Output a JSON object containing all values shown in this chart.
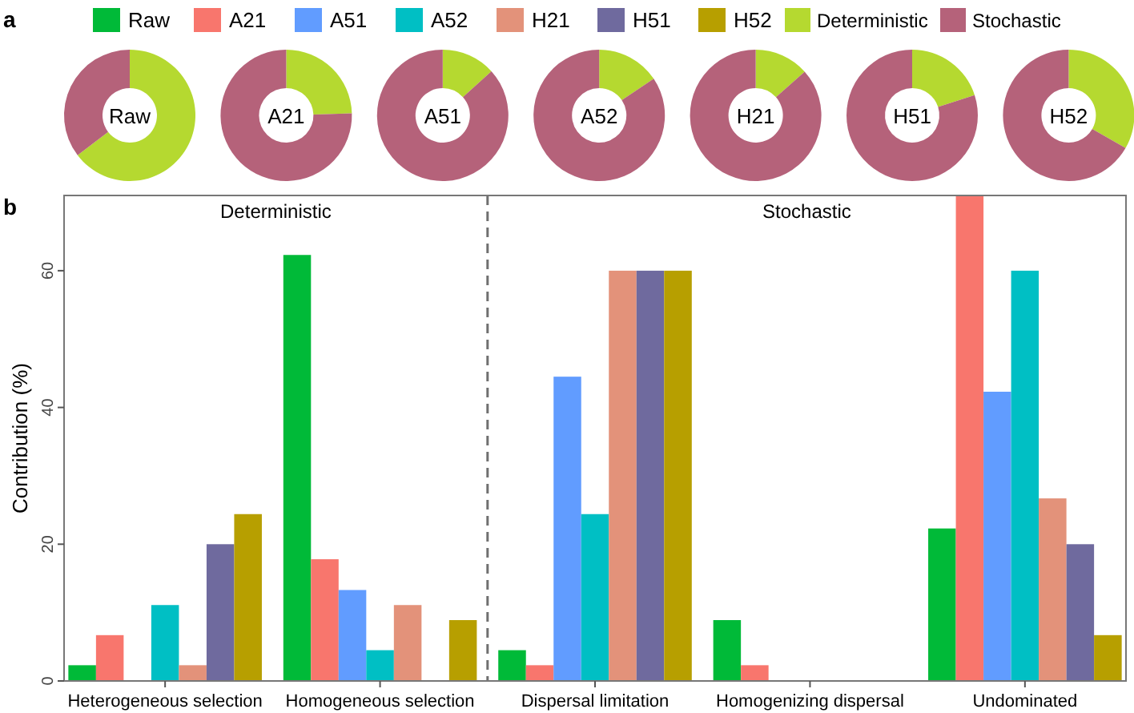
{
  "chart_data": [
    {
      "type": "donut",
      "title": "Raw",
      "categories": [
        "Deterministic",
        "Stochastic"
      ],
      "values": [
        64.6,
        35.4
      ],
      "colors": [
        "#b5d930",
        "#b5627a"
      ],
      "legend": "top right",
      "annotations": [
        "a"
      ]
    },
    {
      "type": "donut",
      "title": "A21",
      "values": [
        24.5,
        75.5
      ],
      "colors": [
        "#b5d930",
        "#b5627a"
      ]
    },
    {
      "type": "donut",
      "title": "A51",
      "values": [
        13.3,
        86.7
      ],
      "colors": [
        "#b5d930",
        "#b5627a"
      ]
    },
    {
      "type": "donut",
      "title": "A52",
      "values": [
        15.6,
        84.4
      ],
      "colors": [
        "#b5d930",
        "#b5627a"
      ]
    },
    {
      "type": "donut",
      "title": "H21",
      "values": [
        13.4,
        86.6
      ],
      "colors": [
        "#b5d930",
        "#b5627a"
      ]
    },
    {
      "type": "donut",
      "title": "H51",
      "values": [
        20,
        80
      ],
      "colors": [
        "#b5d930",
        "#b5627a"
      ]
    },
    {
      "type": "donut",
      "title": "H52",
      "values": [
        33.3,
        66.7
      ],
      "colors": [
        "#b5d930",
        "#b5627a"
      ]
    },
    {
      "type": "bar",
      "ylabel": "Contribution (%)",
      "categories": [
        "Heterogeneous selection",
        "Homogeneous selection",
        "Dispersal limitation",
        "Homogenizing dispersal",
        "Undominated"
      ],
      "series": [
        {
          "name": "Raw",
          "color": "#00ba38",
          "values": [
            2.3,
            62.3,
            4.5,
            8.9,
            22.3
          ]
        },
        {
          "name": "A21",
          "color": "#f8766d",
          "values": [
            6.7,
            17.8,
            2.3,
            2.3,
            71
          ]
        },
        {
          "name": "A51",
          "color": "#619cff",
          "values": [
            0,
            13.3,
            44.5,
            0,
            42.3
          ]
        },
        {
          "name": "A52",
          "color": "#00bfc4",
          "values": [
            11.1,
            4.5,
            24.4,
            0,
            60
          ]
        },
        {
          "name": "H21",
          "color": "#e3927a",
          "values": [
            2.3,
            11.1,
            60,
            0,
            26.7
          ]
        },
        {
          "name": "H51",
          "color": "#6f6a9e",
          "values": [
            20,
            0,
            60,
            0,
            20
          ]
        },
        {
          "name": "H52",
          "color": "#b79f00",
          "values": [
            24.4,
            8.9,
            60,
            0,
            6.7
          ]
        }
      ],
      "ylim": [
        0,
        71
      ],
      "yticks": [
        0,
        20,
        40,
        60
      ],
      "grid": false,
      "legend": "top",
      "annotations": [
        "b",
        "Deterministic",
        "Stochastic"
      ]
    }
  ]
}
